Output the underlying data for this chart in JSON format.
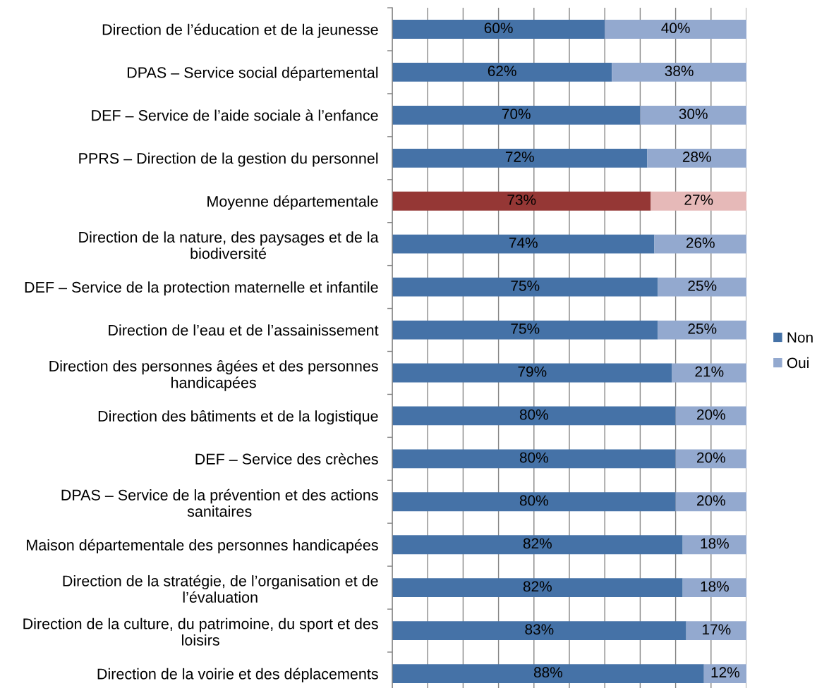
{
  "chart_data": {
    "type": "bar",
    "orientation": "horizontal",
    "stacked": true,
    "categories": [
      "Direction de l’éducation et de la jeunesse",
      "DPAS – Service social départemental",
      "DEF – Service de l’aide sociale à l’enfance",
      "PPRS – Direction de la gestion du personnel",
      "Moyenne départementale",
      "Direction de la nature, des paysages et de la\nbiodiversité",
      "DEF – Service de la protection maternelle et infantile",
      "Direction de l’eau et de l’assainissement",
      "Direction des personnes âgées et des personnes\nhandicapées",
      "Direction des bâtiments et de la logistique",
      "DEF – Service des crèches",
      "DPAS – Service de la prévention et des actions\nsanitaires",
      "Maison départementale des personnes handicapées",
      "Direction de la stratégie, de l’organisation et de\nl’évaluation",
      "Direction de la culture, du patrimoine, du sport et des\nloisirs",
      "Direction de la voirie et des déplacements"
    ],
    "series": [
      {
        "name": "Non",
        "color": "#4572a7",
        "colors": [
          "#4572a7",
          "#4572a7",
          "#4572a7",
          "#4572a7",
          "#953735",
          "#4572a7",
          "#4572a7",
          "#4572a7",
          "#4572a7",
          "#4572a7",
          "#4572a7",
          "#4572a7",
          "#4572a7",
          "#4572a7",
          "#4572a7",
          "#4572a7"
        ],
        "values": [
          60,
          62,
          70,
          72,
          73,
          74,
          75,
          75,
          79,
          80,
          80,
          80,
          82,
          82,
          83,
          88
        ],
        "value_labels": [
          "60%",
          "62%",
          "70%",
          "72%",
          "73%",
          "74%",
          "75%",
          "75%",
          "79%",
          "80%",
          "80%",
          "80%",
          "82%",
          "82%",
          "83%",
          "88%"
        ]
      },
      {
        "name": "Oui",
        "color": "#93a9cf",
        "colors": [
          "#93a9cf",
          "#93a9cf",
          "#93a9cf",
          "#93a9cf",
          "#e6b9b8",
          "#93a9cf",
          "#93a9cf",
          "#93a9cf",
          "#93a9cf",
          "#93a9cf",
          "#93a9cf",
          "#93a9cf",
          "#93a9cf",
          "#93a9cf",
          "#93a9cf",
          "#93a9cf"
        ],
        "values": [
          40,
          38,
          30,
          28,
          27,
          26,
          25,
          25,
          21,
          20,
          20,
          20,
          18,
          18,
          17,
          12
        ],
        "value_labels": [
          "40%",
          "38%",
          "30%",
          "28%",
          "27%",
          "26%",
          "25%",
          "25%",
          "21%",
          "20%",
          "20%",
          "20%",
          "18%",
          "18%",
          "17%",
          "12%"
        ]
      }
    ],
    "xlim": [
      0,
      100
    ],
    "xticks": [
      {
        "value": 0,
        "label": null
      },
      {
        "value": 10,
        "label": null
      },
      {
        "value": 20,
        "label": null
      },
      {
        "value": 30,
        "label": null
      },
      {
        "value": 40,
        "label": null
      },
      {
        "value": 50,
        "label": null
      },
      {
        "value": 60,
        "label": null
      },
      {
        "value": 70,
        "label": null
      },
      {
        "value": 80,
        "label": null
      },
      {
        "value": 90,
        "label": null
      },
      {
        "value": 100,
        "label": null
      }
    ],
    "tick_labels": "y",
    "grid": "x",
    "legend": "right"
  }
}
